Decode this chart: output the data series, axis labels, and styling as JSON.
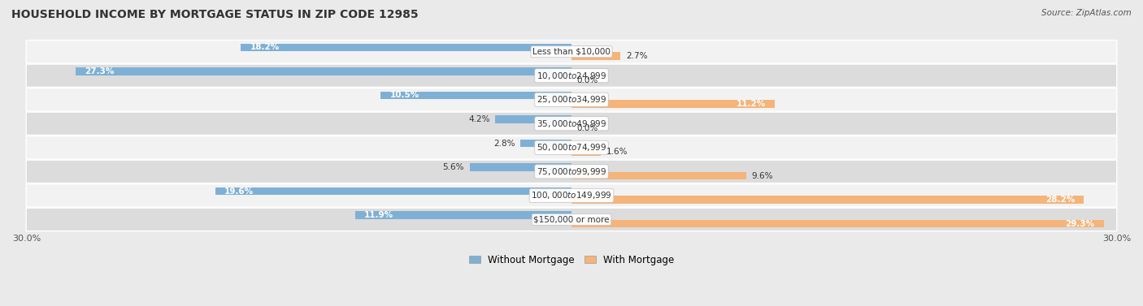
{
  "title": "HOUSEHOLD INCOME BY MORTGAGE STATUS IN ZIP CODE 12985",
  "source": "Source: ZipAtlas.com",
  "categories": [
    "Less than $10,000",
    "$10,000 to $24,999",
    "$25,000 to $34,999",
    "$35,000 to $49,999",
    "$50,000 to $74,999",
    "$75,000 to $99,999",
    "$100,000 to $149,999",
    "$150,000 or more"
  ],
  "without_mortgage": [
    18.2,
    27.3,
    10.5,
    4.2,
    2.8,
    5.6,
    19.6,
    11.9
  ],
  "with_mortgage": [
    2.7,
    0.0,
    11.2,
    0.0,
    1.6,
    9.6,
    28.2,
    29.3
  ],
  "xlim": 30.0,
  "color_without": "#7eb0d5",
  "color_with": "#f4b47a",
  "background_color": "#eaeaea",
  "row_bg_light": "#f2f2f2",
  "row_bg_dark": "#dcdcdc",
  "title_fontsize": 10,
  "label_fontsize": 7.5,
  "tick_fontsize": 8,
  "legend_fontsize": 8.5
}
